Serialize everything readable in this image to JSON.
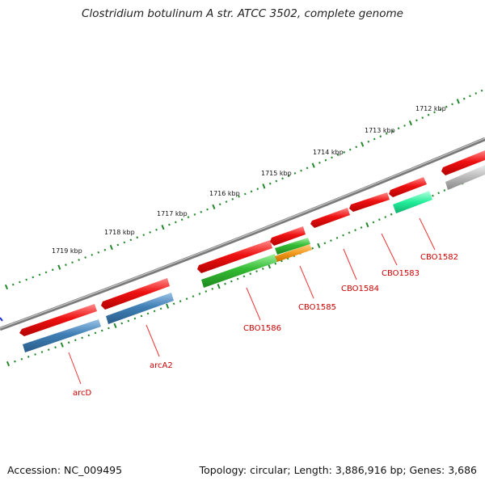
{
  "title": "Clostridium botulinum A str. ATCC 3502, complete genome",
  "footer": {
    "accession": "Accession: NC_009495",
    "summary": "Topology: circular; Length: 3,886,916 bp; Genes: 3,686"
  },
  "scale_labels": [
    "1712 kbp",
    "1713 kbp",
    "1714 kbp",
    "1715 kbp",
    "1716 kbp",
    "1717 kbp",
    "1718 kbp",
    "1719 kbp"
  ],
  "gene_labels": [
    "CBO1582",
    "CBO1583",
    "CBO1584",
    "CBO1585",
    "CBO1586",
    "arcA2",
    "arcD"
  ],
  "colors": {
    "gene_forward": "#ee1111",
    "gene_blue": "#3f7fb5",
    "gene_green": "#33bb33",
    "gene_orange": "#f39a1f",
    "gene_teal": "#22ee99",
    "gene_gray": "#b8b8b8",
    "backbone": "#808080",
    "ticks": "#22882b",
    "label": "#cc0000"
  }
}
